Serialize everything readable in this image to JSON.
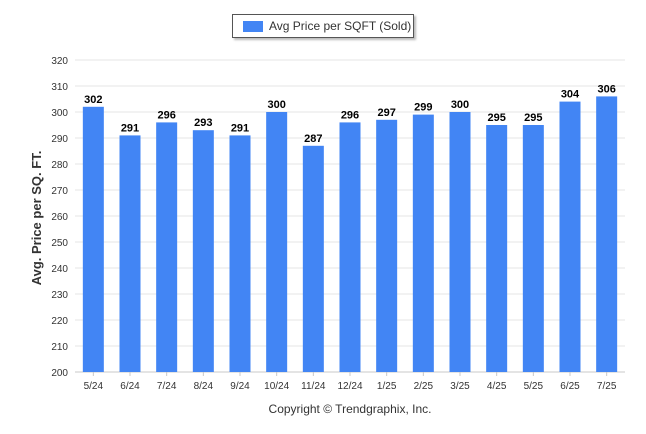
{
  "chart_data": {
    "type": "bar",
    "categories": [
      "5/24",
      "6/24",
      "7/24",
      "8/24",
      "9/24",
      "10/24",
      "11/24",
      "12/24",
      "1/25",
      "2/25",
      "3/25",
      "4/25",
      "5/25",
      "6/25",
      "7/25"
    ],
    "series": [
      {
        "name": "Avg Price per SQFT (Sold)",
        "values": [
          302,
          291,
          296,
          293,
          291,
          300,
          287,
          296,
          297,
          299,
          300,
          295,
          295,
          304,
          306
        ]
      }
    ],
    "ylabel": "Avg. Price per SQ. FT.",
    "xlabel": "",
    "ylim": [
      200,
      320
    ],
    "yticks": [
      200,
      210,
      220,
      230,
      240,
      250,
      260,
      270,
      280,
      290,
      300,
      310,
      320
    ],
    "grid": true,
    "legend": "top-center",
    "bar_color": "#4285f4"
  },
  "footer": "Copyright © Trendgraphix, Inc."
}
